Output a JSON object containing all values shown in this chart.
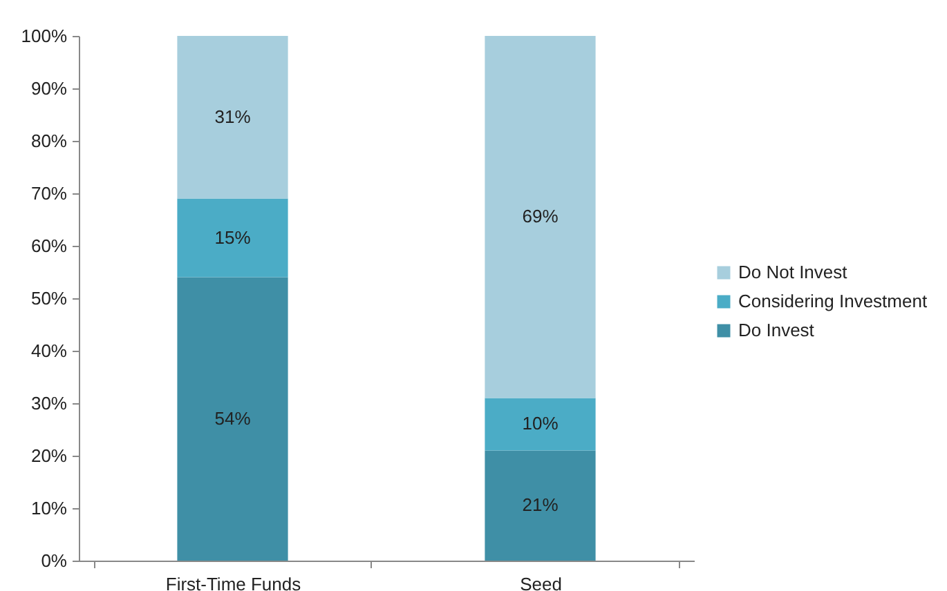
{
  "chart_data": {
    "type": "bar",
    "stacked": true,
    "categories": [
      "First-Time Funds",
      "Seed"
    ],
    "series": [
      {
        "name": "Do Invest",
        "color": "#3f8fa6",
        "values": [
          54,
          21
        ],
        "value_labels": [
          "54%",
          "21%"
        ]
      },
      {
        "name": "Considering Investment",
        "color": "#4bacc6",
        "values": [
          15,
          10
        ],
        "value_labels": [
          "15%",
          "10%"
        ]
      },
      {
        "name": "Do Not Invest",
        "color": "#a7cedd",
        "values": [
          31,
          69
        ],
        "value_labels": [
          "31%",
          "69%"
        ]
      }
    ],
    "ylim": [
      0,
      100
    ],
    "yticks": [
      {
        "value": 0,
        "label": "0%"
      },
      {
        "value": 10,
        "label": "10%"
      },
      {
        "value": 20,
        "label": "20%"
      },
      {
        "value": 30,
        "label": "30%"
      },
      {
        "value": 40,
        "label": "40%"
      },
      {
        "value": 50,
        "label": "50%"
      },
      {
        "value": 60,
        "label": "60%"
      },
      {
        "value": 70,
        "label": "70%"
      },
      {
        "value": 80,
        "label": "80%"
      },
      {
        "value": 90,
        "label": "90%"
      },
      {
        "value": 100,
        "label": "100%"
      }
    ],
    "grid": false,
    "legend": "right"
  }
}
